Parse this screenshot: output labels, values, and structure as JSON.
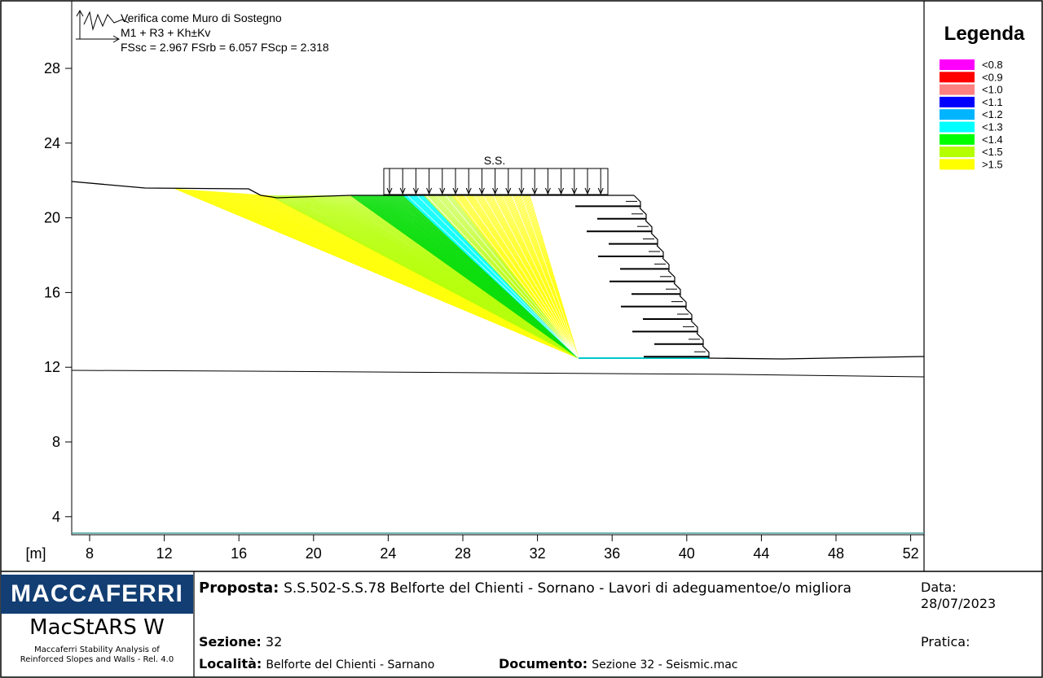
{
  "analysis": {
    "title": "Verifica come Muro di Sostegno",
    "combination": "M1 + R3 + Kh±Kv",
    "factors": "FSsc = 2.967 FSrb = 6.057 FScp = 2.318"
  },
  "axis": {
    "unit_label": "[m]",
    "x_ticks": [
      "8",
      "12",
      "16",
      "20",
      "24",
      "28",
      "32",
      "36",
      "40",
      "44",
      "48",
      "52"
    ],
    "y_ticks": [
      "28",
      "24",
      "20",
      "16",
      "12",
      "8",
      "4"
    ]
  },
  "load_label": "S.S.",
  "legend": {
    "title": "Legenda",
    "items": [
      {
        "label": "<0.8",
        "color": "#ff00ff"
      },
      {
        "label": "<0.9",
        "color": "#ff0000"
      },
      {
        "label": "<1.0",
        "color": "#ff8080"
      },
      {
        "label": "<1.1",
        "color": "#0000ff"
      },
      {
        "label": "<1.2",
        "color": "#00b4ff"
      },
      {
        "label": "<1.3",
        "color": "#00ffff"
      },
      {
        "label": "<1.4",
        "color": "#00ff00"
      },
      {
        "label": "<1.5",
        "color": "#b4ff00"
      },
      {
        "label": ">1.5",
        "color": "#ffff00"
      }
    ]
  },
  "footer": {
    "logo": "MACCAFERRI",
    "program": "MacStARS W",
    "program_desc_1": "Maccaferri Stability Analysis of",
    "program_desc_2": "Reinforced Slopes and Walls - Rel. 4.0",
    "proposta_label": "Proposta:",
    "proposta_value": "S.S.502-S.S.78 Belforte del Chienti  - Sornano - Lavori di adeguamentoe/o migliora",
    "sezione_label": "Sezione:",
    "sezione_value": "32",
    "localita_label": "Località:",
    "localita_value": "Belforte del Chienti - Sarnano",
    "documento_label": "Documento:",
    "documento_value": "Sezione 32 - Seismic.mac",
    "data_label": "Data:",
    "data_value": "28/07/2023",
    "pratica_label": "Pratica:"
  }
}
